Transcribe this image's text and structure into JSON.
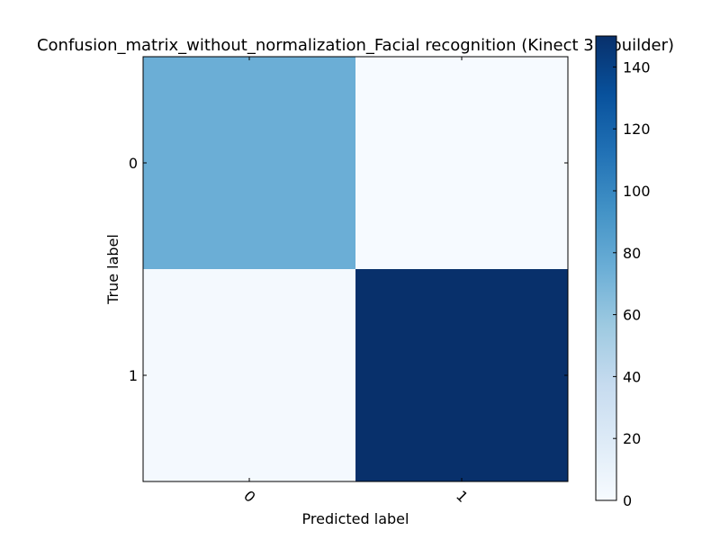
{
  "chart_data": {
    "type": "heatmap",
    "title": "Confusion_matrix_without_normalization_Facial recognition (Kinect 3D builder)",
    "xlabel": "Predicted label",
    "ylabel": "True label",
    "x_categories": [
      "0",
      "1"
    ],
    "y_categories": [
      "0",
      "1"
    ],
    "matrix": [
      [
        75,
        1
      ],
      [
        2,
        150
      ]
    ],
    "colormap": "Blues",
    "color_range": [
      0,
      150
    ],
    "colorbar_ticks": [
      "0",
      "20",
      "40",
      "60",
      "80",
      "100",
      "120",
      "140"
    ],
    "colorbar_tick_values": [
      0,
      20,
      40,
      60,
      80,
      100,
      120,
      140
    ],
    "x_tick_rotation": "45 degrees"
  }
}
